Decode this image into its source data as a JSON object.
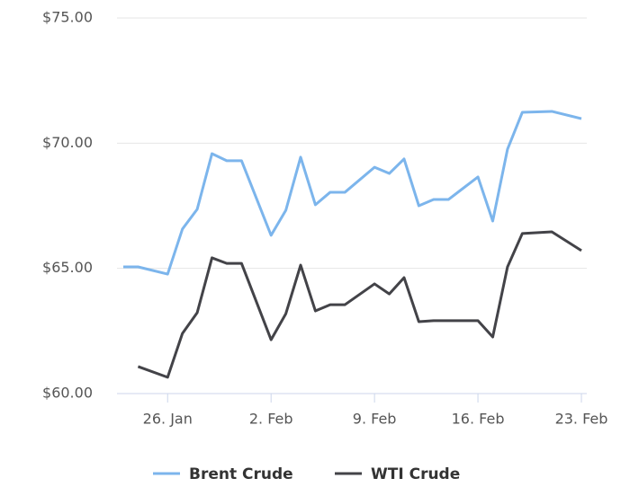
{
  "chart_data": {
    "type": "line",
    "x": [
      "23. Jan",
      "24. Jan",
      "26. Jan",
      "27. Jan",
      "28. Jan",
      "29. Jan",
      "30. Jan",
      "31. Jan",
      "2. Feb",
      "3. Feb",
      "4. Feb",
      "5. Feb",
      "6. Feb",
      "7. Feb",
      "9. Feb",
      "10. Feb",
      "11. Feb",
      "12. Feb",
      "13. Feb",
      "14. Feb",
      "16. Feb",
      "17. Feb",
      "18. Feb",
      "19. Feb",
      "21. Feb",
      "23. Feb"
    ],
    "series": [
      {
        "name": "Brent Crude",
        "color": "#7cb5ec",
        "values": [
          65.06,
          65.06,
          64.77,
          66.57,
          67.36,
          69.58,
          69.3,
          69.3,
          66.32,
          67.32,
          69.44,
          67.54,
          68.04,
          68.04,
          69.04,
          68.79,
          69.37,
          67.5,
          67.75,
          67.75,
          68.65,
          66.89,
          69.76,
          71.23,
          71.27,
          70.98
        ]
      },
      {
        "name": "WTI Crude",
        "color": "#434348",
        "values": [
          null,
          61.08,
          60.65,
          62.4,
          63.23,
          65.42,
          65.2,
          65.2,
          62.15,
          63.19,
          65.13,
          63.3,
          63.55,
          63.55,
          64.38,
          63.98,
          64.63,
          62.87,
          62.91,
          62.91,
          62.91,
          62.26,
          65.06,
          66.39,
          66.46,
          65.71
        ]
      }
    ],
    "ylim": [
      60,
      75
    ],
    "yticks": [
      {
        "value": 60,
        "label": "$60.00"
      },
      {
        "value": 65,
        "label": "$65.00"
      },
      {
        "value": 70,
        "label": "$70.00"
      },
      {
        "value": 75,
        "label": "$75.00"
      }
    ],
    "xticks": [
      "26. Jan",
      "2. Feb",
      "9. Feb",
      "16. Feb",
      "23. Feb"
    ],
    "grid": true,
    "legend": "bottom"
  }
}
